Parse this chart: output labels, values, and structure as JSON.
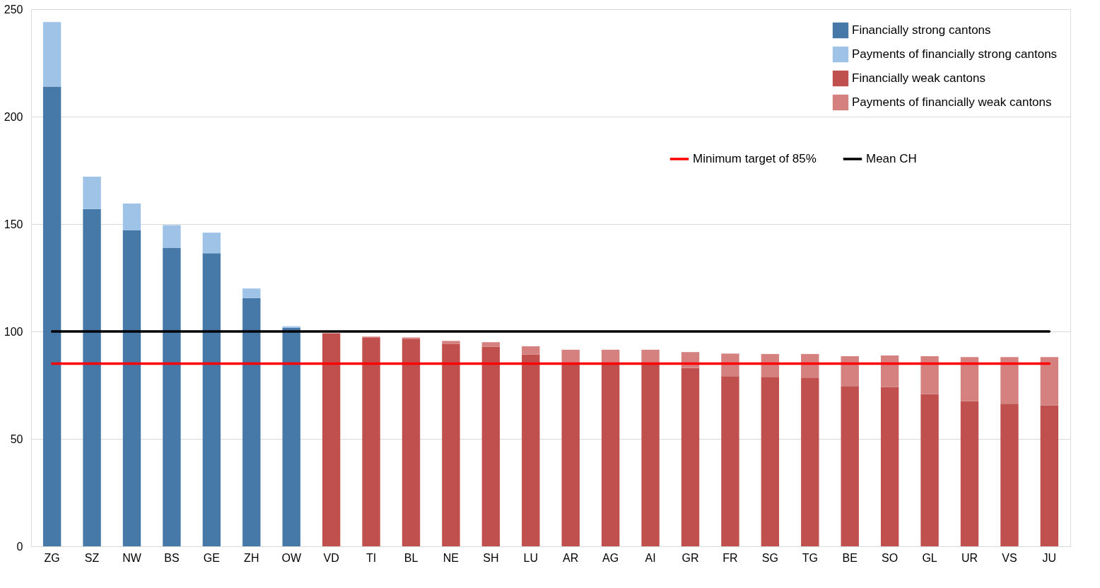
{
  "chart_data": {
    "type": "bar",
    "stacked": true,
    "categories": [
      "ZG",
      "SZ",
      "NW",
      "BS",
      "GE",
      "ZH",
      "OW",
      "VD",
      "TI",
      "BL",
      "NE",
      "SH",
      "LU",
      "AR",
      "AG",
      "AI",
      "GR",
      "FR",
      "SG",
      "TG",
      "BE",
      "SO",
      "GL",
      "UR",
      "VS",
      "JU"
    ],
    "series": [
      {
        "name": "Financially strong cantons",
        "color": "#4679a8",
        "values": [
          214,
          157,
          147,
          139,
          136.4,
          115.5,
          101.7,
          null,
          null,
          null,
          null,
          null,
          null,
          null,
          null,
          null,
          null,
          null,
          null,
          null,
          null,
          null,
          null,
          null,
          null,
          null
        ]
      },
      {
        "name": "Payments of financially strong cantons",
        "color": "#9fc3e7",
        "values": [
          30,
          15,
          12.5,
          10.5,
          9.6,
          4.5,
          0.7,
          null,
          null,
          null,
          null,
          null,
          null,
          null,
          null,
          null,
          null,
          null,
          null,
          null,
          null,
          null,
          null,
          null,
          null,
          null
        ]
      },
      {
        "name": "Financially weak cantons",
        "color": "#c0504d",
        "values": [
          null,
          null,
          null,
          null,
          null,
          null,
          null,
          99.2,
          97,
          96.4,
          94.1,
          92.8,
          89.3,
          85,
          85,
          85,
          83,
          79.2,
          78.9,
          78.5,
          74.6,
          74.2,
          70.8,
          67.6,
          66.4,
          65.6
        ]
      },
      {
        "name": "Payments of financially weak cantons",
        "color": "#d48180",
        "values": [
          null,
          null,
          null,
          null,
          null,
          null,
          null,
          null,
          0.6,
          0.8,
          1.5,
          2.2,
          3.8,
          6.5,
          6.5,
          6.5,
          7.4,
          10.5,
          10.6,
          11,
          13.9,
          14.6,
          17.7,
          20.5,
          21.7,
          22.5
        ]
      }
    ],
    "ylim": [
      0,
      250
    ],
    "yticks": [
      0,
      50,
      100,
      150,
      200,
      250
    ],
    "grid": "y",
    "ref_lines": [
      {
        "axis": "y",
        "value": 85,
        "label": "Minimum target of 85%",
        "color": "#ff0000"
      },
      {
        "axis": "y",
        "value": 100,
        "label": "Mean CH",
        "color": "#000000"
      }
    ],
    "legend": "top right"
  }
}
